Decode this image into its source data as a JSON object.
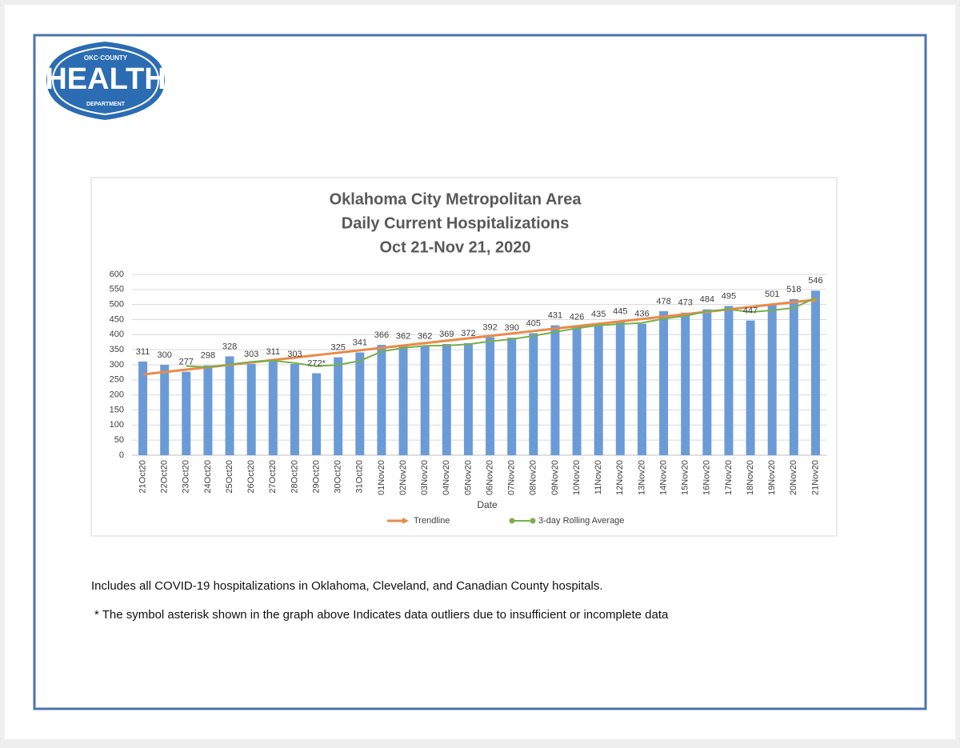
{
  "logo": {
    "top": "OKC·COUNTY",
    "main": "HEALTH",
    "bottom": "DEPARTMENT"
  },
  "chart_data": {
    "type": "bar",
    "title": [
      "Oklahoma City Metropolitan Area",
      "Daily Current Hospitalizations",
      "Oct 21-Nov 21, 2020"
    ],
    "x_label": "Date",
    "categories": [
      "21Oct20",
      "22Oct20",
      "23Oct20",
      "24Oct20",
      "25Oct20",
      "26Oct20",
      "27Oct20",
      "28Oct20",
      "29Oct20",
      "30Oct20",
      "31Oct20",
      "01Nov20",
      "02Nov20",
      "03Nov20",
      "04Nov20",
      "05Nov20",
      "06Nov20",
      "07Nov20",
      "08Nov20",
      "09Nov20",
      "10Nov20",
      "11Nov20",
      "12Nov20",
      "13Nov20",
      "14Nov20",
      "15Nov20",
      "16Nov20",
      "17Nov20",
      "18Nov20",
      "19Nov20",
      "20Nov20",
      "21Nov20"
    ],
    "values": [
      311,
      300,
      277,
      298,
      328,
      303,
      311,
      303,
      272,
      325,
      341,
      366,
      362,
      362,
      369,
      372,
      392,
      390,
      405,
      431,
      426,
      435,
      445,
      436,
      478,
      473,
      484,
      495,
      447,
      501,
      518,
      546
    ],
    "value_labels": [
      "311",
      "300",
      "277",
      "298",
      "328",
      "303",
      "311",
      "303",
      "272*",
      "325",
      "341",
      "366",
      "362",
      "362",
      "369",
      "372",
      "392",
      "390",
      "405",
      "431",
      "426",
      "435",
      "445",
      "436",
      "478",
      "473",
      "484",
      "495",
      "447",
      "501",
      "518",
      "546"
    ],
    "color": "#6a9bd6",
    "series": [
      {
        "name": "Trendline",
        "color": "#e98a4a",
        "values": [
          268,
          276,
          284,
          292,
          300,
          308,
          316,
          324,
          332,
          340,
          348,
          356,
          364,
          372,
          380,
          388,
          396,
          404,
          412,
          420,
          428,
          436,
          444,
          452,
          460,
          468,
          476,
          484,
          492,
          500,
          508,
          516
        ]
      },
      {
        "name": "3-day Rolling Average",
        "color": "#78b04a",
        "values": [
          null,
          null,
          296,
          292,
          301,
          310,
          314,
          306,
          295,
          300,
          313,
          344,
          356,
          363,
          364,
          368,
          378,
          385,
          396,
          409,
          421,
          431,
          435,
          439,
          453,
          462,
          478,
          484,
          475,
          481,
          489,
          522
        ]
      }
    ],
    "ylim": [
      0,
      600
    ],
    "yticks": [
      0,
      50,
      100,
      150,
      200,
      250,
      300,
      350,
      400,
      450,
      500,
      550,
      600
    ],
    "grid": true
  },
  "notes": [
    "Includes all COVID-19 hospitalizations in Oklahoma, Cleveland, and Canadian County hospitals.",
    "* The symbol asterisk shown in the graph above Indicates data outliers due to insufficient or incomplete data"
  ]
}
